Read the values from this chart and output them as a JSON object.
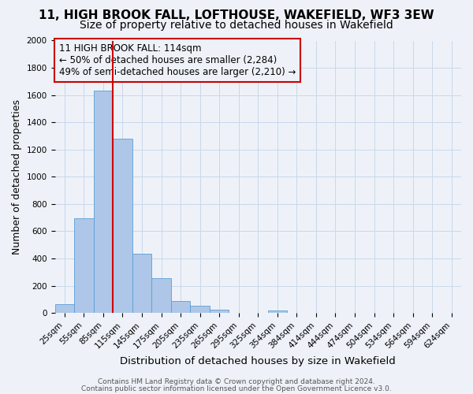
{
  "title": "11, HIGH BROOK FALL, LOFTHOUSE, WAKEFIELD, WF3 3EW",
  "subtitle": "Size of property relative to detached houses in Wakefield",
  "xlabel": "Distribution of detached houses by size in Wakefield",
  "ylabel": "Number of detached properties",
  "bar_values": [
    65,
    695,
    1635,
    1280,
    435,
    255,
    90,
    50,
    25,
    0,
    0,
    15,
    0,
    0,
    0,
    0,
    0,
    0,
    0,
    0,
    0
  ],
  "bar_labels": [
    "25sqm",
    "55sqm",
    "85sqm",
    "115sqm",
    "145sqm",
    "175sqm",
    "205sqm",
    "235sqm",
    "265sqm",
    "295sqm",
    "325sqm",
    "354sqm",
    "384sqm",
    "414sqm",
    "444sqm",
    "474sqm",
    "504sqm",
    "534sqm",
    "564sqm",
    "594sqm",
    "624sqm"
  ],
  "bar_color": "#aec6e8",
  "bar_edge_color": "#5a9fd4",
  "vline_position": 2.5,
  "vline_color": "#cc0000",
  "annotation_box_text": "11 HIGH BROOK FALL: 114sqm\n← 50% of detached houses are smaller (2,284)\n49% of semi-detached houses are larger (2,210) →",
  "annotation_box_edge_color": "#cc0000",
  "ylim": [
    0,
    2000
  ],
  "yticks": [
    0,
    200,
    400,
    600,
    800,
    1000,
    1200,
    1400,
    1600,
    1800,
    2000
  ],
  "grid_color": "#c8d8ea",
  "background_color": "#eef2f8",
  "footer_line1": "Contains HM Land Registry data © Crown copyright and database right 2024.",
  "footer_line2": "Contains public sector information licensed under the Open Government Licence v3.0.",
  "title_fontsize": 11,
  "subtitle_fontsize": 10,
  "xlabel_fontsize": 9.5,
  "ylabel_fontsize": 9,
  "tick_fontsize": 7.5,
  "annotation_fontsize": 8.5,
  "footer_fontsize": 6.5
}
